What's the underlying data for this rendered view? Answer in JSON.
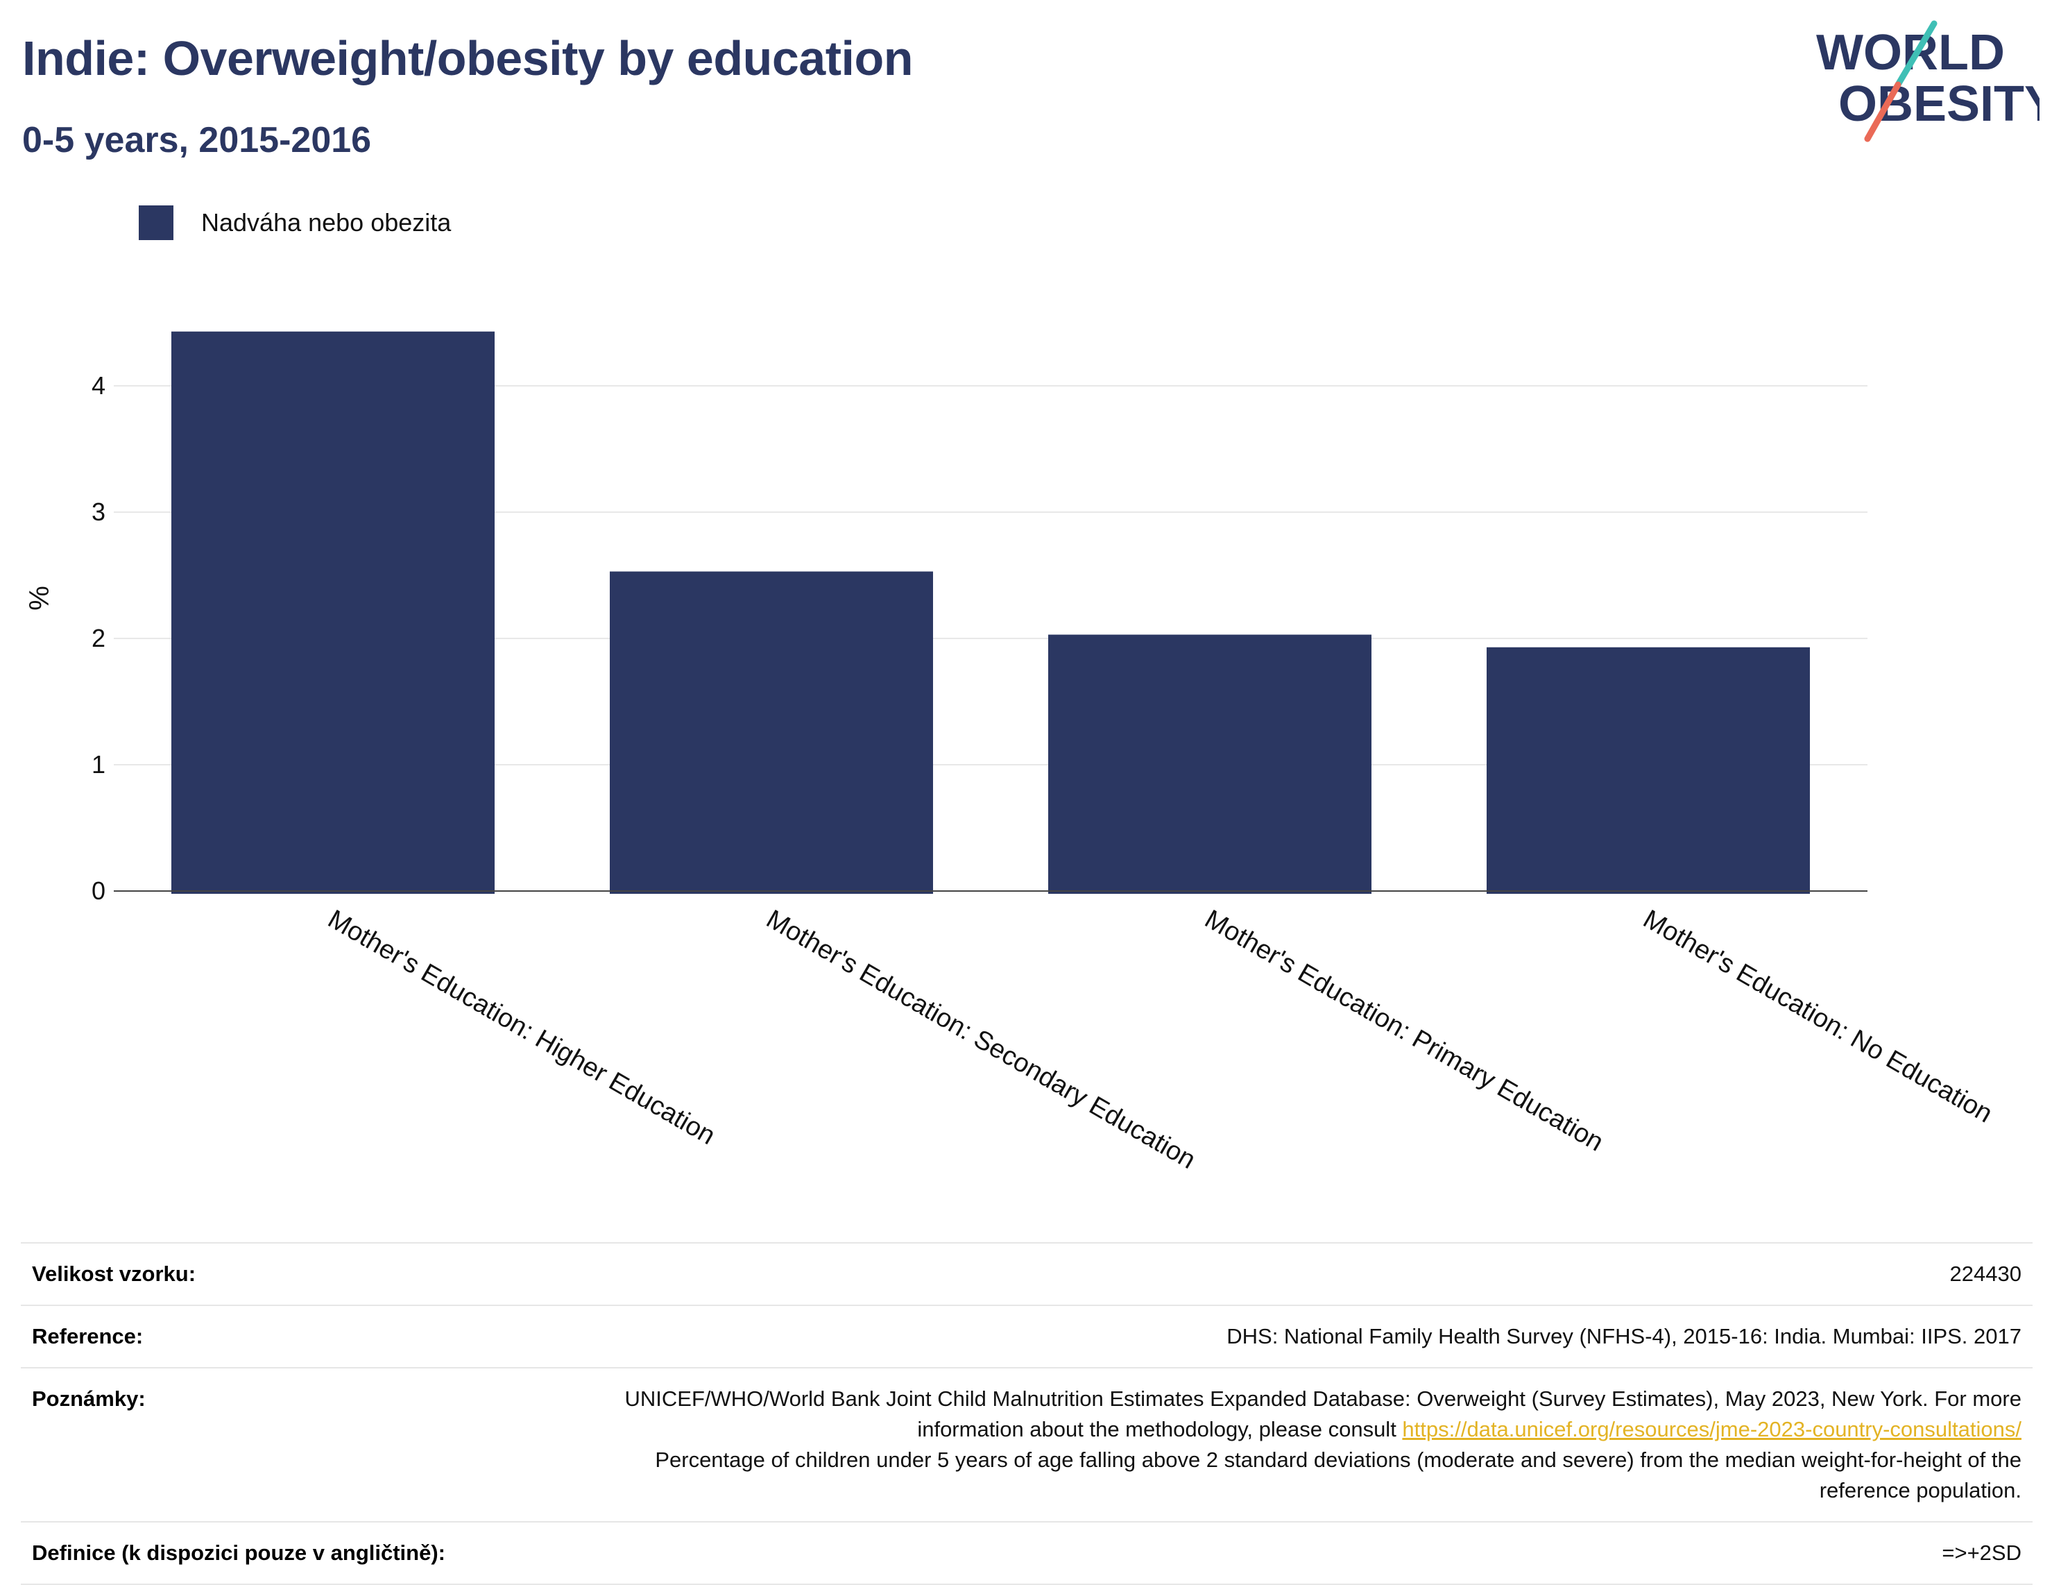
{
  "header": {
    "title": "Indie: Overweight/obesity by education",
    "subtitle": "0-5 years, 2015-2016",
    "logo_line1": "WORLD",
    "logo_line2": "OBESITY"
  },
  "legend": {
    "label": "Nadváha nebo obezita"
  },
  "colors": {
    "bar": "#2b3762",
    "title": "#2b3762",
    "link": "#e3b324",
    "logo_teal": "#3fbfb5",
    "logo_coral": "#ea6a57"
  },
  "chart_data": {
    "type": "bar",
    "categories": [
      "Mother's Education: Higher Education",
      "Mother's Education: Secondary Education",
      "Mother's Education: Primary Education",
      "Mother's Education: No Education"
    ],
    "series": [
      {
        "name": "Nadváha nebo obezita",
        "values": [
          4.43,
          2.53,
          2.03,
          1.93
        ]
      }
    ],
    "ylabel": "%",
    "ylim": [
      0,
      4.8
    ],
    "yticks": [
      0,
      1,
      2,
      3,
      4
    ],
    "grid": true,
    "legend_position": "top-left"
  },
  "info": {
    "rows": [
      {
        "key": "Velikost vzorku:",
        "value": "224430"
      },
      {
        "key": "Reference:",
        "value": "DHS: National Family Health Survey (NFHS-4), 2015-16: India. Mumbai: IIPS. 2017"
      },
      {
        "key": "Poznámky:",
        "value_before": "UNICEF/WHO/World Bank Joint Child Malnutrition Estimates Expanded Database: Overweight (Survey Estimates), May 2023, New York. For more information about the methodology, please consult ",
        "link": "https://data.unicef.org/resources/jme-2023-country-consultations/",
        "value_after": "Percentage of children under 5 years of age falling above 2 standard deviations (moderate and severe) from the median weight-for-height of the reference population."
      },
      {
        "key": "Definice (k dispozici pouze v angličtině):",
        "value": "=>+2SD"
      }
    ]
  }
}
